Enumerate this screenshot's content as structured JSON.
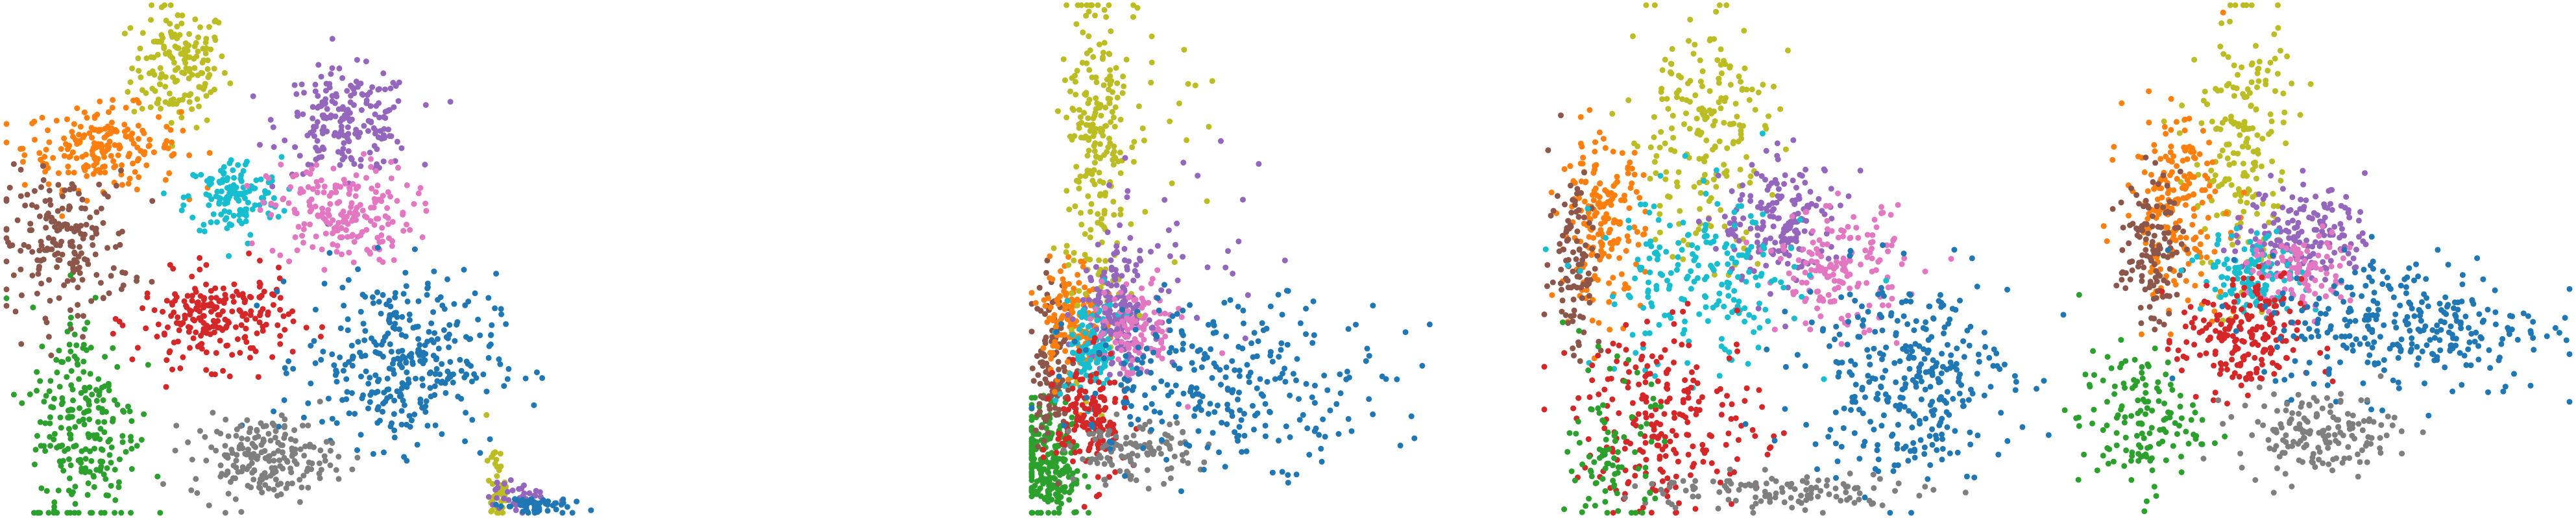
{
  "palette": {
    "c0": "#1f77b4",
    "c1": "#ff7f0e",
    "c2": "#2ca02c",
    "c3": "#d62728",
    "c4": "#9467bd",
    "c5": "#8c564b",
    "c6": "#e377c2",
    "c7": "#7f7f7f",
    "c8": "#bcbd22",
    "c9": "#17becf"
  },
  "chart_data": [
    {
      "type": "scatter",
      "title": "",
      "xlabel": "",
      "ylabel": "",
      "axes": "off",
      "grid": false,
      "legend": "none",
      "xlim": [
        0,
        100
      ],
      "ylim": [
        0,
        100
      ],
      "clusters": [
        {
          "color": "c8",
          "cx": 29,
          "cy": 88,
          "sx": 4.0,
          "sy": 6.0,
          "n": 160
        },
        {
          "color": "c1",
          "cx": 16,
          "cy": 72,
          "sx": 6.5,
          "sy": 4.0,
          "n": 200
        },
        {
          "color": "c4",
          "cx": 57,
          "cy": 77,
          "sx": 5.5,
          "sy": 5.0,
          "n": 200
        },
        {
          "color": "c9",
          "cx": 38,
          "cy": 62,
          "sx": 4.0,
          "sy": 4.0,
          "n": 140
        },
        {
          "color": "c6",
          "cx": 56,
          "cy": 59,
          "sx": 6.0,
          "sy": 5.0,
          "n": 200
        },
        {
          "color": "c5",
          "cx": 10,
          "cy": 53,
          "sx": 5.5,
          "sy": 7.0,
          "n": 190
        },
        {
          "color": "c3",
          "cx": 35,
          "cy": 38,
          "sx": 6.5,
          "sy": 4.5,
          "n": 220
        },
        {
          "color": "c0",
          "cx": 66,
          "cy": 30,
          "sx": 8.0,
          "sy": 8.5,
          "n": 330
        },
        {
          "color": "c2",
          "cx": 13,
          "cy": 17,
          "sx": 4.5,
          "sy": 12.0,
          "n": 240
        },
        {
          "color": "c7",
          "cx": 43,
          "cy": 11,
          "sx": 6.0,
          "sy": 4.0,
          "n": 200
        },
        {
          "color": "c8",
          "cx": 82,
          "cy": 5,
          "sx": 0.8,
          "sy": 4.0,
          "n": 40
        },
        {
          "color": "c4",
          "cx": 86,
          "cy": 3,
          "sx": 2.5,
          "sy": 1.5,
          "n": 40
        },
        {
          "color": "c0",
          "cx": 88,
          "cy": 1.5,
          "sx": 3.0,
          "sy": 1.0,
          "n": 50
        }
      ]
    },
    {
      "type": "scatter",
      "title": "",
      "xlabel": "",
      "ylabel": "",
      "axes": "off",
      "grid": false,
      "legend": "none",
      "xlim": [
        0,
        100
      ],
      "ylim": [
        0,
        100
      ],
      "clusters": [
        {
          "color": "c2",
          "cx": 3,
          "cy": 10,
          "sx": 3.5,
          "sy": 6.0,
          "n": 240
        },
        {
          "color": "c5",
          "cx": 4,
          "cy": 30,
          "sx": 2.0,
          "sy": 8.0,
          "n": 120
        },
        {
          "color": "c1",
          "cx": 8,
          "cy": 38,
          "sx": 3.0,
          "sy": 6.0,
          "n": 140
        },
        {
          "color": "c8",
          "cx": 13,
          "cy": 68,
          "sx": 3.0,
          "sy": 18.0,
          "n": 200
        },
        {
          "color": "c4",
          "cx": 17,
          "cy": 40,
          "sx": 3.5,
          "sy": 6.0,
          "n": 180
        },
        {
          "color": "c9",
          "cx": 12,
          "cy": 32,
          "sx": 3.0,
          "sy": 5.0,
          "n": 110
        },
        {
          "color": "c6",
          "cx": 21,
          "cy": 36,
          "sx": 4.0,
          "sy": 5.0,
          "n": 110
        },
        {
          "color": "c3",
          "cx": 12,
          "cy": 18,
          "sx": 3.5,
          "sy": 6.0,
          "n": 150
        },
        {
          "color": "c7",
          "cx": 20,
          "cy": 12,
          "sx": 6.0,
          "sy": 3.0,
          "n": 110
        },
        {
          "color": "c0",
          "cx": 40,
          "cy": 26,
          "sx": 16.0,
          "sy": 8.0,
          "n": 280
        },
        {
          "color": "c8",
          "cx": 20,
          "cy": 80,
          "sx": 8.0,
          "sy": 14.0,
          "n": 50
        },
        {
          "color": "c4",
          "cx": 30,
          "cy": 50,
          "sx": 10.0,
          "sy": 12.0,
          "n": 30
        }
      ]
    },
    {
      "type": "scatter",
      "title": "",
      "xlabel": "",
      "ylabel": "",
      "axes": "off",
      "grid": false,
      "legend": "none",
      "xlim": [
        0,
        100
      ],
      "ylim": [
        0,
        100
      ],
      "clusters": [
        {
          "color": "c8",
          "cx": 30,
          "cy": 75,
          "sx": 7.0,
          "sy": 12.0,
          "n": 200
        },
        {
          "color": "c1",
          "cx": 11,
          "cy": 57,
          "sx": 4.0,
          "sy": 8.0,
          "n": 180
        },
        {
          "color": "c5",
          "cx": 6,
          "cy": 50,
          "sx": 2.5,
          "sy": 10.0,
          "n": 100
        },
        {
          "color": "c4",
          "cx": 46,
          "cy": 57,
          "sx": 6.0,
          "sy": 6.0,
          "n": 180
        },
        {
          "color": "c6",
          "cx": 57,
          "cy": 48,
          "sx": 6.0,
          "sy": 6.0,
          "n": 160
        },
        {
          "color": "c9",
          "cx": 30,
          "cy": 45,
          "sx": 10.0,
          "sy": 9.0,
          "n": 200
        },
        {
          "color": "c3",
          "cx": 24,
          "cy": 18,
          "sx": 9.0,
          "sy": 9.0,
          "n": 230
        },
        {
          "color": "c0",
          "cx": 70,
          "cy": 27,
          "sx": 10.0,
          "sy": 10.0,
          "n": 320
        },
        {
          "color": "c7",
          "cx": 45,
          "cy": 4,
          "sx": 14.0,
          "sy": 2.0,
          "n": 120
        },
        {
          "color": "c2",
          "cx": 13,
          "cy": 12,
          "sx": 4.0,
          "sy": 8.0,
          "n": 90
        }
      ]
    },
    {
      "type": "scatter",
      "title": "",
      "xlabel": "",
      "ylabel": "",
      "axes": "off",
      "grid": false,
      "legend": "none",
      "xlim": [
        0,
        100
      ],
      "ylim": [
        0,
        100
      ],
      "clusters": [
        {
          "color": "c8",
          "cx": 35,
          "cy": 72,
          "sx": 5.0,
          "sy": 14.0,
          "n": 190
        },
        {
          "color": "c1",
          "cx": 22,
          "cy": 60,
          "sx": 5.0,
          "sy": 9.0,
          "n": 200
        },
        {
          "color": "c5",
          "cx": 17,
          "cy": 52,
          "sx": 3.0,
          "sy": 7.0,
          "n": 120
        },
        {
          "color": "c4",
          "cx": 48,
          "cy": 55,
          "sx": 6.0,
          "sy": 5.0,
          "n": 170
        },
        {
          "color": "c9",
          "cx": 38,
          "cy": 47,
          "sx": 5.0,
          "sy": 4.0,
          "n": 120
        },
        {
          "color": "c6",
          "cx": 47,
          "cy": 47,
          "sx": 5.0,
          "sy": 4.0,
          "n": 100
        },
        {
          "color": "c3",
          "cx": 35,
          "cy": 34,
          "sx": 6.0,
          "sy": 6.0,
          "n": 200
        },
        {
          "color": "c0",
          "cx": 68,
          "cy": 37,
          "sx": 14.0,
          "sy": 7.0,
          "n": 300
        },
        {
          "color": "c7",
          "cx": 50,
          "cy": 16,
          "sx": 8.0,
          "sy": 4.0,
          "n": 160
        },
        {
          "color": "c2",
          "cx": 15,
          "cy": 18,
          "sx": 6.0,
          "sy": 7.0,
          "n": 140
        }
      ]
    }
  ]
}
